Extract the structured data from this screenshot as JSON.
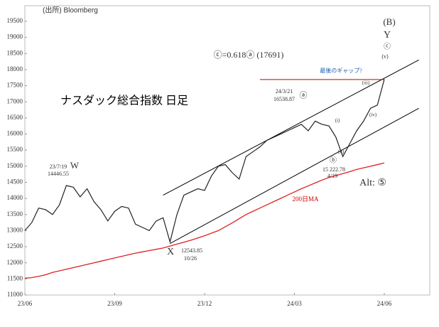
{
  "chart_data": {
    "type": "line",
    "title": "ナスダック総合指数 日足",
    "source": "(出所) Bloomberg",
    "categories": [
      "23/06",
      null,
      null,
      null,
      null,
      null,
      null,
      null,
      null,
      null,
      null,
      null,
      null,
      "23/09",
      null,
      null,
      null,
      null,
      null,
      null,
      null,
      null,
      null,
      null,
      null,
      null,
      "23/12",
      null,
      null,
      null,
      null,
      null,
      null,
      null,
      null,
      null,
      null,
      null,
      null,
      "24/03",
      null,
      null,
      null,
      null,
      null,
      null,
      null,
      null,
      null,
      null,
      null,
      null,
      "24/06"
    ],
    "series": [
      {
        "name": "ナスダック総合指数",
        "color": "#222222",
        "values": [
          13000,
          13250,
          13700,
          13650,
          13500,
          13800,
          14400,
          14350,
          14050,
          14300,
          13900,
          13650,
          13300,
          13600,
          13750,
          13700,
          13200,
          13100,
          13000,
          13300,
          13400,
          12650,
          13500,
          14100,
          14200,
          14300,
          14250,
          14700,
          15000,
          15050,
          14800,
          14600,
          15300,
          15450,
          15600,
          15800,
          15900,
          16000,
          16100,
          16200,
          16300,
          16100,
          16400,
          16300,
          16250,
          15900,
          15300,
          15700,
          16100,
          16400,
          16800,
          16900,
          17700
        ]
      },
      {
        "name": "200日MA",
        "color": "#e02020",
        "values": [
          11520,
          11540,
          11580,
          11630,
          11700,
          11750,
          11800,
          11850,
          11900,
          11950,
          12000,
          12050,
          12100,
          12150,
          12200,
          12250,
          12300,
          12340,
          12380,
          12420,
          12460,
          12520,
          12580,
          12640,
          12700,
          12770,
          12840,
          12920,
          13000,
          13120,
          13240,
          13370,
          13500,
          13600,
          13700,
          13800,
          13900,
          14000,
          14100,
          14200,
          14300,
          14390,
          14480,
          14570,
          14650,
          14710,
          14770,
          14830,
          14900,
          14950,
          15000,
          15050,
          15100
        ]
      }
    ],
    "ylim": [
      11000,
      19500
    ],
    "yticks": [
      11000,
      11500,
      12000,
      12500,
      13000,
      13500,
      14000,
      14500,
      15000,
      15500,
      16000,
      16500,
      17000,
      17500,
      18000,
      18500,
      19000,
      19500
    ],
    "trend_lines": [
      {
        "x": [
          20,
          57
        ],
        "y": [
          14100,
          18300
        ],
        "color": "#000000"
      },
      {
        "x": [
          21,
          57
        ],
        "y": [
          12600,
          16800
        ],
        "color": "#000000"
      },
      {
        "x": [
          34,
          52
        ],
        "y": [
          17691,
          17691
        ],
        "color": "#c00000"
      }
    ],
    "annotations": [
      "(B)",
      "Y",
      "ⓒ",
      "(v)",
      "ⓒ=0.618ⓐ (17691)",
      "最後のギャップ?",
      "(iii)",
      "24/3/21",
      "16538.87",
      "ⓐ",
      "(iv)",
      "(i)",
      "(ii)",
      "15 222.78",
      "4/19",
      "ⓑ",
      "Alt: ⑤",
      "200日MA",
      "23/7/19",
      "14446.55",
      "W",
      "X",
      "12543.85",
      "10/26"
    ]
  }
}
